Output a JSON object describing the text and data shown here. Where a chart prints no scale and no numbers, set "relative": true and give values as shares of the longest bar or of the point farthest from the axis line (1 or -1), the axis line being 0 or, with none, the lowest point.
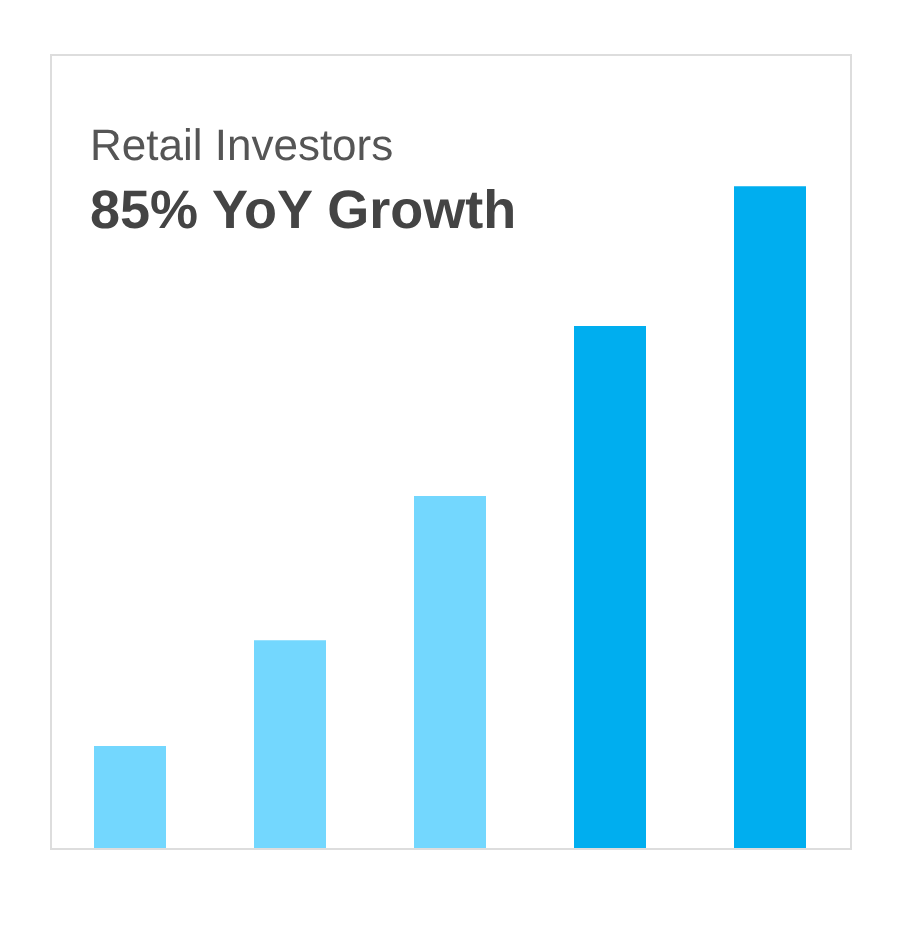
{
  "chart_data": {
    "type": "bar",
    "title": "Retail Investors",
    "subtitle": "85% YoY Growth",
    "relative": true,
    "categories": [
      null,
      null,
      null,
      null,
      null
    ],
    "values": [
      0.154,
      0.314,
      0.532,
      0.789,
      1
    ],
    "colors": [
      "#73d7fe",
      "#73d7fe",
      "#73d7fe",
      "#00aeef",
      "#00aeef"
    ]
  }
}
